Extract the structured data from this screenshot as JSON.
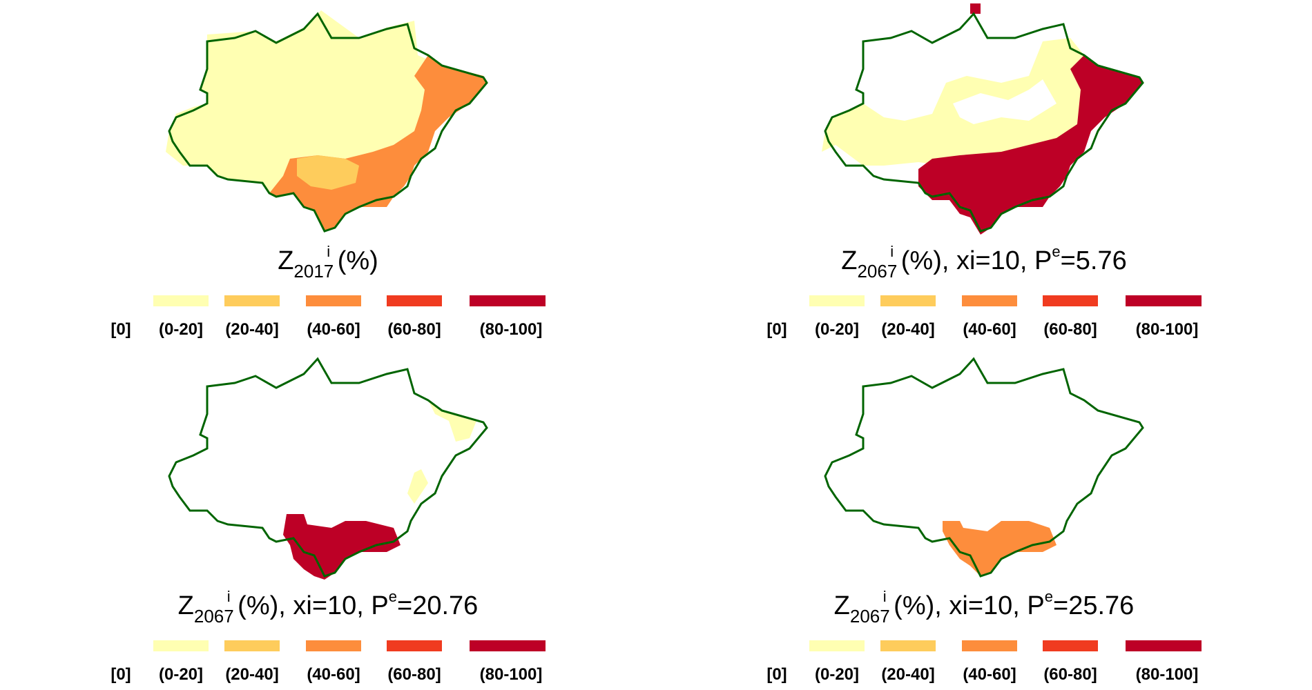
{
  "legend": {
    "classes": [
      {
        "label": "[0]",
        "color": "#ffffff"
      },
      {
        "label": "(0-20]",
        "color": "#ffffb2"
      },
      {
        "label": "(20-40]",
        "color": "#fecc5c"
      },
      {
        "label": "(40-60]",
        "color": "#fd8d3c"
      },
      {
        "label": "(60-80]",
        "color": "#f03b20"
      },
      {
        "label": "(80-100]",
        "color": "#bd0026"
      }
    ]
  },
  "boundary_color": "#006400",
  "panels": [
    {
      "z": "Z",
      "sup": "i",
      "year": "2017",
      "unit": " (%)",
      "params": "",
      "pe_sup": "",
      "pe_val": "",
      "dominant_class": 1
    },
    {
      "z": "Z",
      "sup": "i",
      "year": "2067",
      "unit": " (%), xi=10, ",
      "params": "P",
      "pe_sup": "e",
      "pe_val": "=5.76",
      "dominant_class": 5
    },
    {
      "z": "Z",
      "sup": "i",
      "year": "2067",
      "unit": " (%), xi=10, ",
      "params": "P",
      "pe_sup": "e",
      "pe_val": "=20.76",
      "dominant_class": 5
    },
    {
      "z": "Z",
      "sup": "i",
      "year": "2067",
      "unit": " (%), xi=10, ",
      "params": "P",
      "pe_sup": "e",
      "pe_val": "=25.76",
      "dominant_class": 3
    }
  ]
}
